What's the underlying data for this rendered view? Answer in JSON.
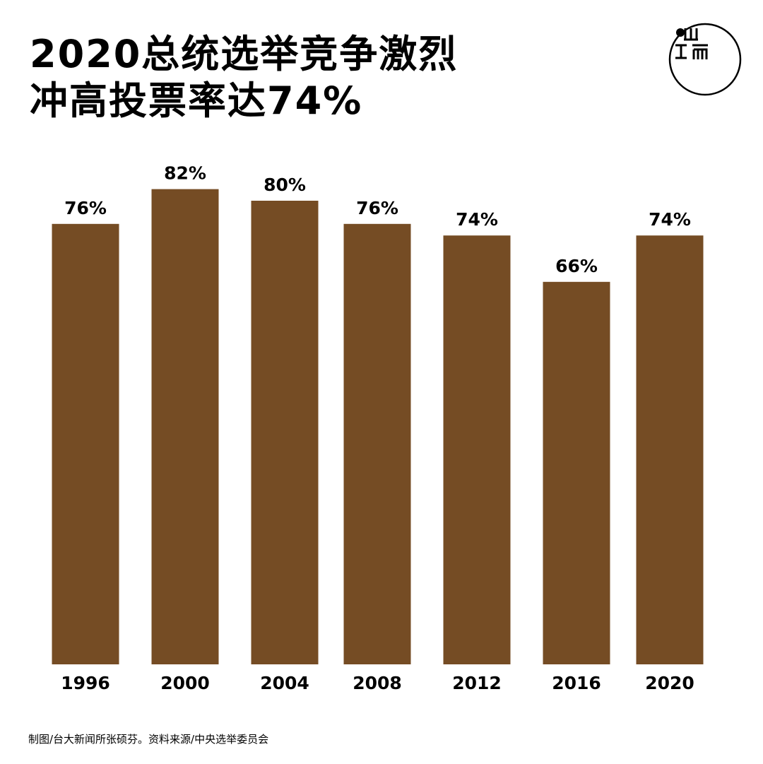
{
  "title": {
    "line1": "2020总统选举竞争激烈",
    "line2": "冲高投票率达74%"
  },
  "logo": {
    "icon": "duan-logo-icon",
    "text": "端"
  },
  "chart_data": {
    "type": "bar",
    "categories": [
      "1996",
      "2000",
      "2004",
      "2008",
      "2012",
      "2016",
      "2020"
    ],
    "values": [
      76,
      82,
      80,
      76,
      74,
      66,
      74
    ],
    "value_labels": [
      "76%",
      "82%",
      "80%",
      "76%",
      "74%",
      "66%",
      "74%"
    ],
    "unit": "%",
    "title": "2020总统选举竞争激烈 冲高投票率达74%",
    "xlabel": "",
    "ylabel": "",
    "ylim": [
      0,
      86
    ],
    "grid": false,
    "legend": "none",
    "bar_color": "#754C24"
  },
  "footer": {
    "credit": "制图/台大新闻所张硕芬。资料来源/中央选举委员会"
  }
}
